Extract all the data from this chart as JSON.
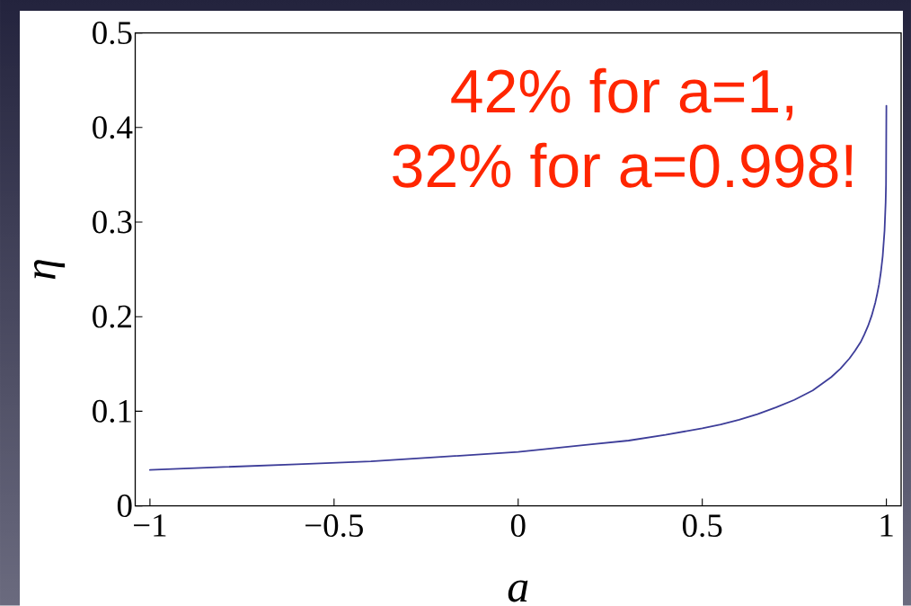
{
  "chart_data": {
    "type": "line",
    "xlabel": "a",
    "ylabel": "η",
    "x": [
      -1,
      -0.8,
      -0.6,
      -0.4,
      -0.2,
      0,
      0.1,
      0.2,
      0.3,
      0.4,
      0.5,
      0.55,
      0.6,
      0.65,
      0.7,
      0.75,
      0.8,
      0.85,
      0.875,
      0.9,
      0.915,
      0.93,
      0.94,
      0.95,
      0.96,
      0.97,
      0.975,
      0.98,
      0.985,
      0.99,
      0.995,
      0.998,
      0.999,
      1
    ],
    "series": [
      {
        "color": "#3d3d99",
        "values": [
          0.038,
          0.041,
          0.044,
          0.047,
          0.052,
          0.057,
          0.061,
          0.065,
          0.069,
          0.075,
          0.082,
          0.086,
          0.091,
          0.097,
          0.104,
          0.112,
          0.122,
          0.136,
          0.145,
          0.156,
          0.164,
          0.173,
          0.181,
          0.19,
          0.201,
          0.215,
          0.224,
          0.234,
          0.247,
          0.264,
          0.291,
          0.321,
          0.34,
          0.423
        ]
      }
    ],
    "xlim": [
      -1.04,
      1.04
    ],
    "ylim": [
      0,
      0.5
    ],
    "xticks": [
      {
        "value": -1,
        "label": "−1"
      },
      {
        "value": -0.5,
        "label": "−0.5"
      },
      0,
      0.5,
      1
    ],
    "yticks": [
      0,
      0.1,
      0.2,
      0.3,
      0.4,
      0.5
    ],
    "line_style": "solid",
    "annotations": [
      "42% for a=1,",
      "32% for a=0.998!"
    ]
  }
}
